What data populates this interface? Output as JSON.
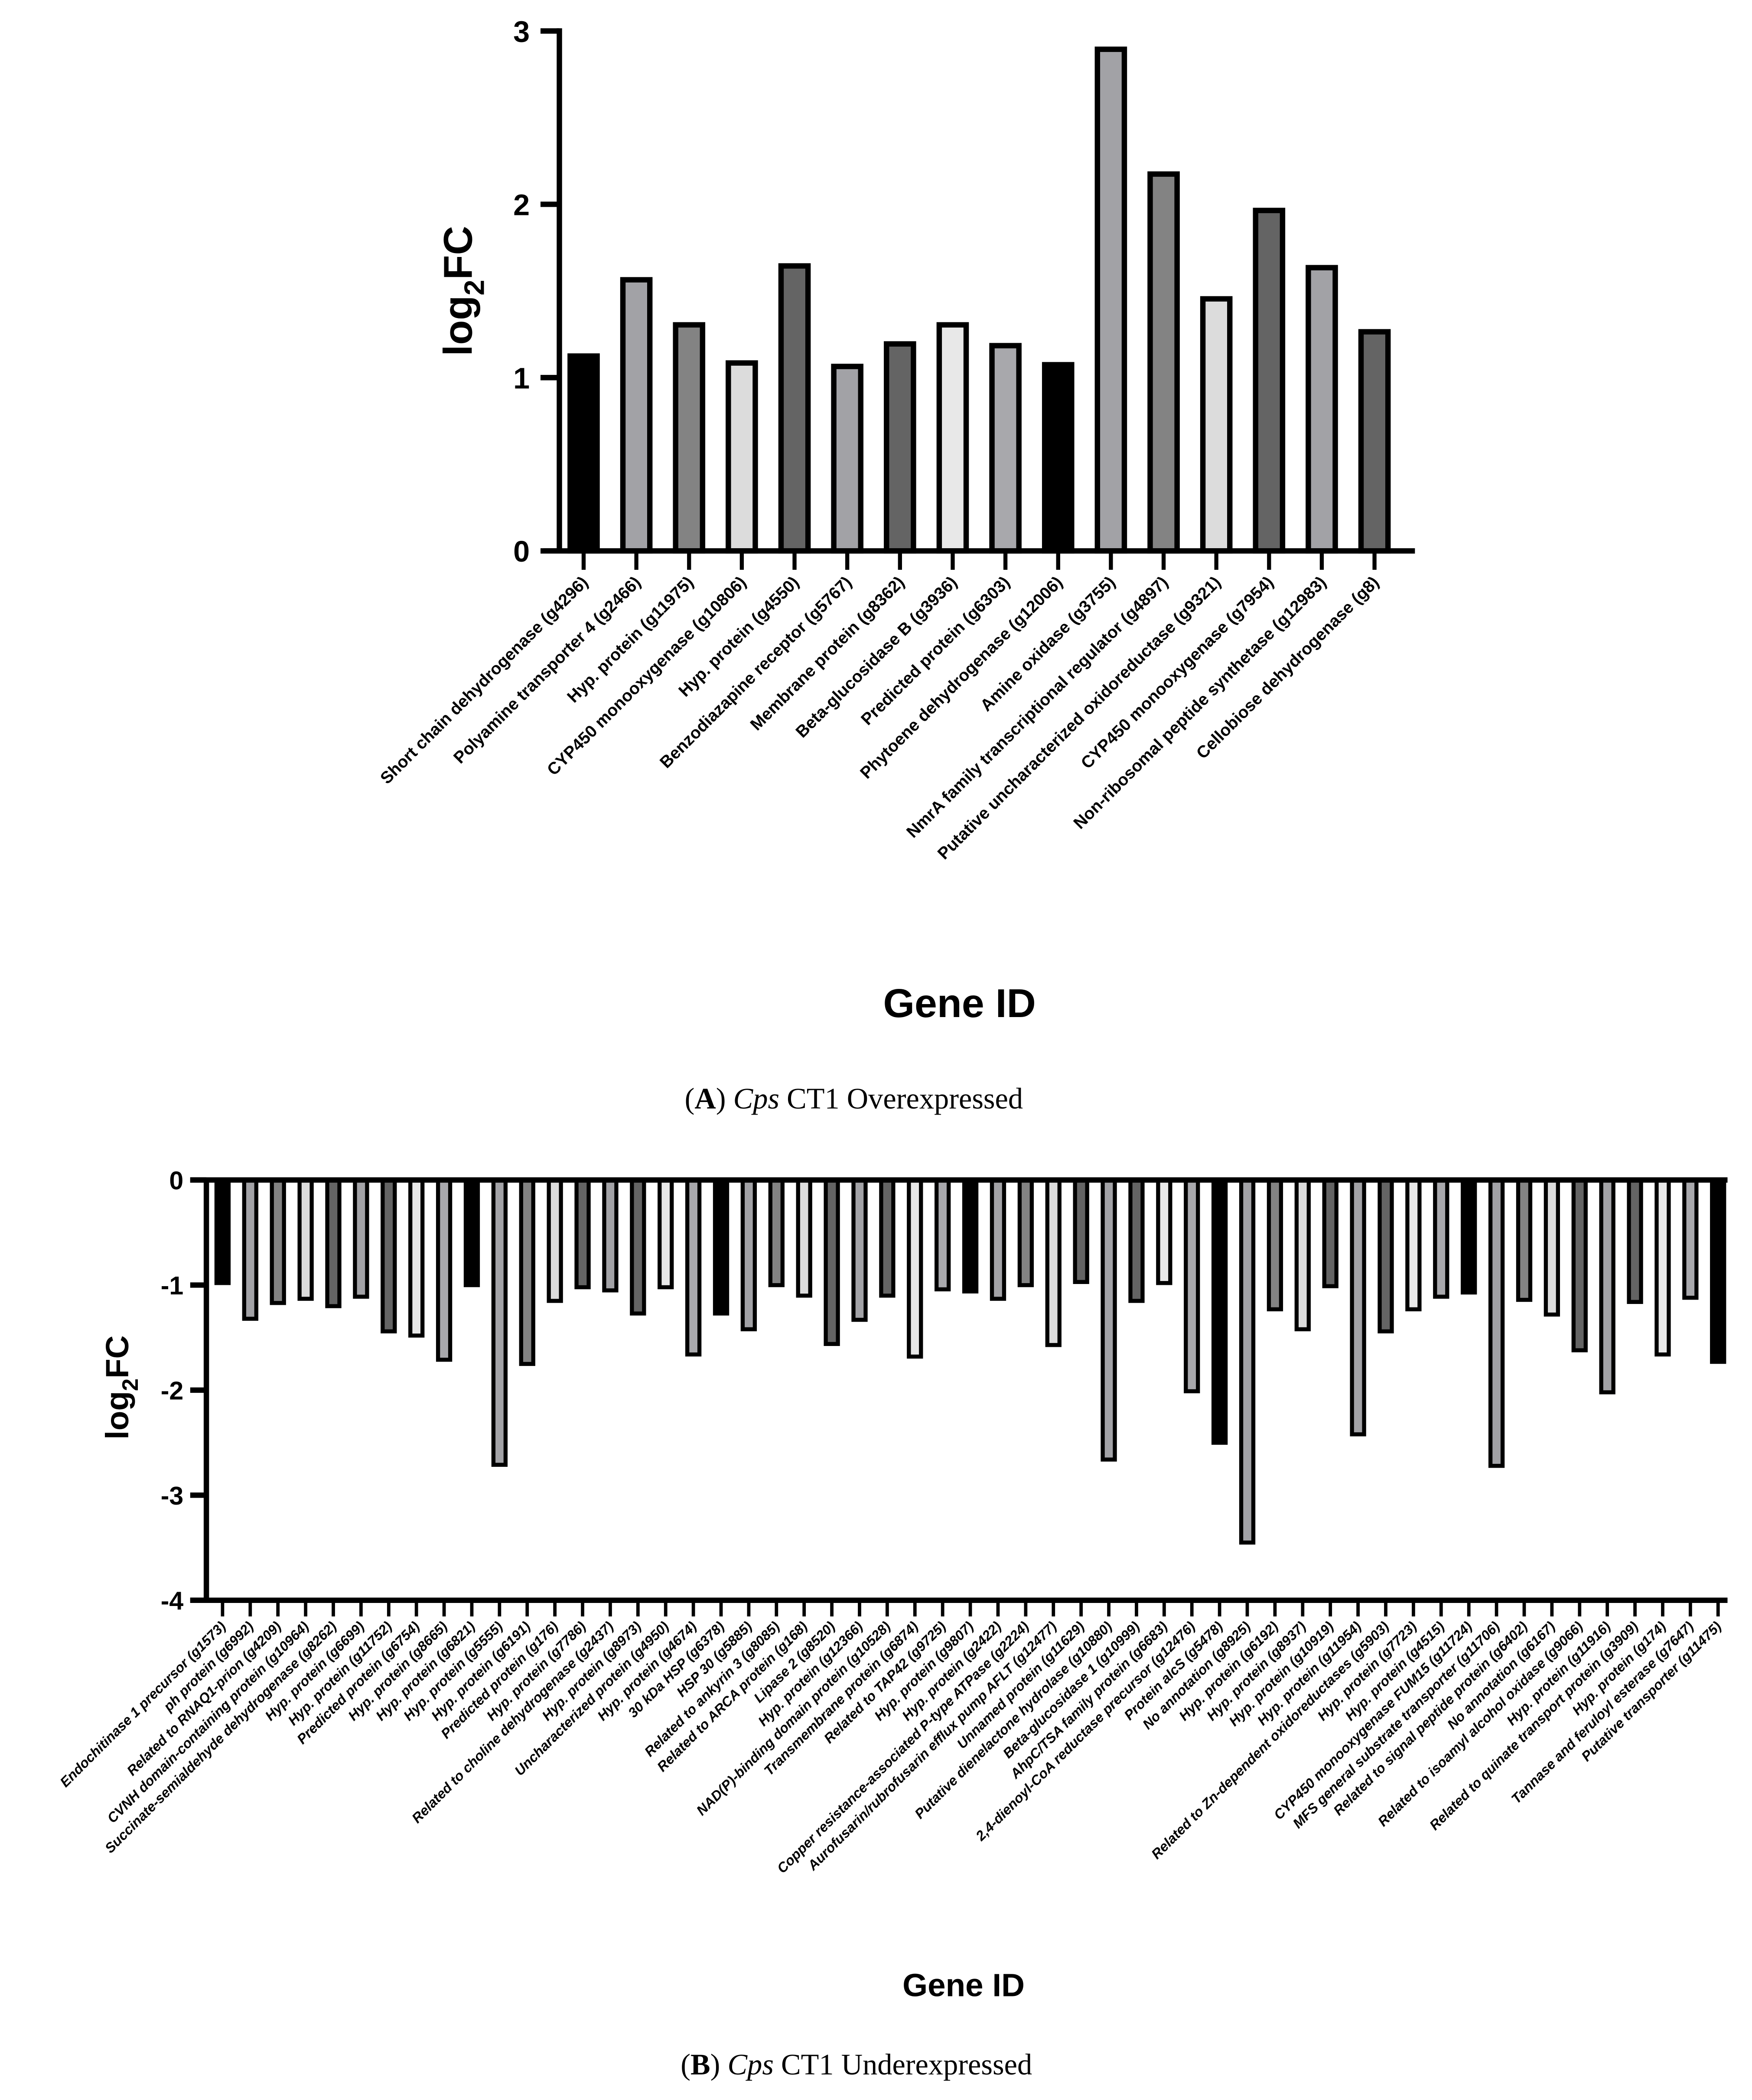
{
  "palette_cycle": [
    "#000000",
    "#a2a2a6",
    "#838383",
    "#dcdcdc",
    "#646464",
    "#a2a2a6",
    "#646464",
    "#e8e8e8",
    "#a8a8ac"
  ],
  "chart_data": [
    {
      "type": "bar",
      "panel": "A",
      "xlabel": "Gene ID",
      "ylabel": {
        "prefix": "log",
        "subscript": "2",
        "suffix": "FC"
      },
      "ylim": [
        0,
        3
      ],
      "yticks": [
        0,
        1,
        2,
        3
      ],
      "grid": false,
      "caption": {
        "letter": "A",
        "species": "Cps",
        "rest": "CT1 Overexpressed"
      },
      "categories": [
        "Short chain dehydrogenase (g4296)",
        "Polyamine transporter 4 (g2466)",
        "Hyp. protein (g11975)",
        "CYP450 monooxygenase (g10806)",
        "Hyp. protein (g4550)",
        "Benzodiazapine receptor (g5767)",
        "Membrane protein (g8362)",
        "Beta-glucosidase B (g3936)",
        "Predicted protein (g6303)",
        "Phytoene dehydrogenase (g12006)",
        "Amine oxidase (g3755)",
        "NmrA family transcriptional regulator (g4897)",
        "Putative uncharacterized oxidoreductase (g9321)",
        "CYP450 monooxygenase (g7954)",
        "Non-ribosomal peptide synthetase (g12983)",
        "Cellobiose dehydrogenase (g8)"
      ],
      "values": [
        1.14,
        1.58,
        1.32,
        1.1,
        1.66,
        1.08,
        1.21,
        1.32,
        1.2,
        1.09,
        2.91,
        2.19,
        1.47,
        1.98,
        1.65,
        1.28
      ]
    },
    {
      "type": "bar",
      "panel": "B",
      "xlabel": "Gene ID",
      "ylabel": {
        "prefix": "log",
        "subscript": "2",
        "suffix": "FC"
      },
      "ylim": [
        -4,
        0
      ],
      "yticks": [
        0,
        -1,
        -2,
        -3,
        -4
      ],
      "grid": false,
      "caption": {
        "letter": "B",
        "species": "Cps",
        "rest": "CT1 Underexpressed"
      },
      "categories": [
        "Endochitinase 1 precursor (g1573)",
        "ph protein (g6992)",
        "Related to RNAQ1-prion (g4209)",
        "CVNH domain-containing protein (g10964)",
        "Succinate-semialdehyde dehydrogenase (g8262)",
        "Hyp. protein (g6699)",
        "Hyp. protein (g11752)",
        "Predicted protein (g6754)",
        "Hyp. protein (g8665)",
        "Hyp. protein (g6821)",
        "Hyp. protein (g5555)",
        "Hyp. protein (g6191)",
        "Predicted protein (g176)",
        "Hyp. protein (g7786)",
        "Related to choline dehydrogenase (g2437)",
        "Hyp. protein (g8973)",
        "Uncharacterized protein (g4950)",
        "Hyp. protein (g4674)",
        "30 kDa HSP (g6378)",
        "HSP 30 (g5885)",
        "Related to ankyrin 3 (g8085)",
        "Related to ARCA protein (g168)",
        "Lipase 2 (g8520)",
        "Hyp. protein (g12366)",
        "NAD(P)-binding domain protein (g10528)",
        "Transmembrane protein (g6874)",
        "Related to TAP42 (g9725)",
        "Hyp. protein (g9807)",
        "Hyp. protein (g2422)",
        "Copper resistance-associated P-type ATPase (g2224)",
        "Aurofusarin/rubrofusarin efflux pump AFLT (g12477)",
        "Unnamed protein (g11629)",
        "Putative dienelactone hydrolase (g10880)",
        "Beta-glucosidase 1 (g10999)",
        "AhpC/TSA family protein (g6683)",
        "2,4-dienoyl-CoA reductase precursor (g12476)",
        "Protein alcS (g5478)",
        "No annotation (g8925)",
        "Hyp. protein (g6192)",
        "Hyp. protein (g8937)",
        "Hyp. protein (g10919)",
        "Hyp. protein (g11954)",
        "Related to Zn-dependent oxidoreductases (g5903)",
        "Hyp. protein (g7723)",
        "Hyp. protein (g4515)",
        "CYP450 monooxygenase FUM15 (g11724)",
        "MFS general substrate transporter (g11706)",
        "Related to signal peptide protein (g6402)",
        "No annotation (g6167)",
        "Related to isoamyl alcohol oxidase (g9066)",
        "Hyp. protein (g11916)",
        "Related to quinate transport protein (g3909)",
        "Hyp. protein (g174)",
        "Tannase and feruloyl esterase (g7647)",
        "Putative transporter (g11475)"
      ],
      "values": [
        -1.0,
        -1.34,
        -1.19,
        -1.15,
        -1.22,
        -1.13,
        -1.46,
        -1.5,
        -1.73,
        -1.02,
        -2.73,
        -1.77,
        -1.17,
        -1.04,
        -1.07,
        -1.29,
        -1.04,
        -1.68,
        -1.29,
        -1.44,
        -1.02,
        -1.12,
        -1.58,
        -1.35,
        -1.12,
        -1.7,
        -1.06,
        -1.08,
        -1.15,
        -1.02,
        -1.59,
        -0.99,
        -2.68,
        -1.17,
        -1.0,
        -2.03,
        -2.52,
        -3.47,
        -1.25,
        -1.44,
        -1.03,
        -2.44,
        -1.46,
        -1.25,
        -1.13,
        -1.09,
        -2.74,
        -1.16,
        -1.3,
        -1.64,
        -2.04,
        -1.18,
        -1.68,
        -1.14,
        -1.75
      ]
    }
  ]
}
